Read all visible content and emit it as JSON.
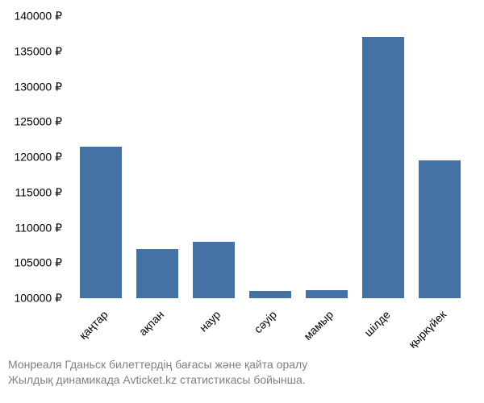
{
  "chart": {
    "type": "bar",
    "categories": [
      "қаңтар",
      "ақпан",
      "наур",
      "сәуір",
      "мамыр",
      "шілде",
      "қыркүйек"
    ],
    "values": [
      121500,
      107000,
      108000,
      101000,
      101200,
      137000,
      119500
    ],
    "bar_color": "#4472a4",
    "background_color": "#ffffff",
    "ylim": [
      100000,
      140000
    ],
    "ytick_step": 5000,
    "ytick_labels": [
      "100000 ₽",
      "105000 ₽",
      "110000 ₽",
      "115000 ₽",
      "120000 ₽",
      "125000 ₽",
      "130000 ₽",
      "135000 ₽",
      "140000 ₽"
    ],
    "ytick_values": [
      100000,
      105000,
      110000,
      115000,
      120000,
      125000,
      130000,
      135000,
      140000
    ],
    "label_fontsize": 14,
    "label_color": "#000000",
    "x_label_rotation": -45
  },
  "caption": {
    "line1": "Монреаля Гданьск билеттердің бағасы және қайта оралу",
    "line2": "Жылдық динамикада Avticket.kz статистикасы бойынша.",
    "color": "#808080",
    "fontsize": 14
  }
}
